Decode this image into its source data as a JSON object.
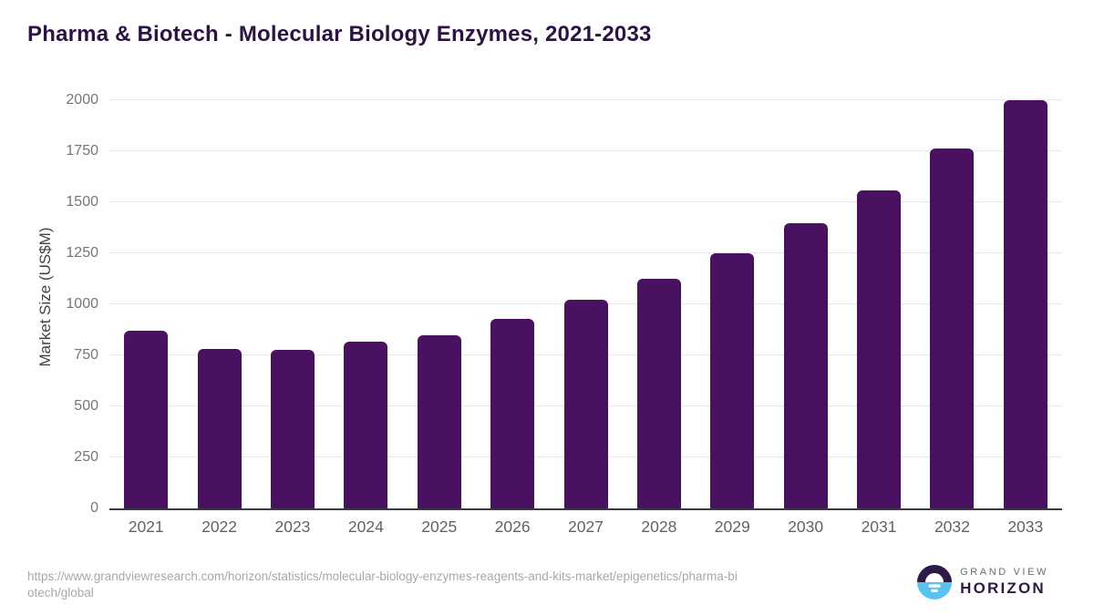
{
  "header": {
    "title": "Pharma & Biotech - Molecular Biology Enzymes, 2021-2033"
  },
  "chart_data": {
    "type": "bar",
    "title": "Pharma & Biotech - Molecular Biology Enzymes, 2021-2033",
    "categories": [
      "2021",
      "2022",
      "2023",
      "2024",
      "2025",
      "2026",
      "2027",
      "2028",
      "2029",
      "2030",
      "2031",
      "2032",
      "2033"
    ],
    "values": [
      869,
      781,
      777,
      818,
      850,
      930,
      1022,
      1127,
      1250,
      1396,
      1560,
      1762,
      1998
    ],
    "xlabel": "",
    "ylabel": "Market Size (US$M)",
    "ylim": [
      0,
      2000
    ],
    "yticks": [
      0,
      250,
      500,
      750,
      1000,
      1250,
      1500,
      1750,
      2000
    ],
    "grid": true,
    "legend": false,
    "bar_color": "#4a1161"
  },
  "footer": {
    "source_url_line1": "https://www.grandviewresearch.com/horizon/statistics/molecular-biology-enzymes-reagents-and-kits-market/epigenetics/pharma-bi",
    "source_url_line2": "otech/global",
    "logo": {
      "brand_top": "GRAND VIEW",
      "brand_bottom": "HORIZON"
    }
  },
  "colors": {
    "bar": "#4a1161",
    "title": "#2d1245",
    "grid": "#e7e7e7",
    "axis_line": "#3a3a42",
    "y_tick": "#757575",
    "x_tick": "#5f6368",
    "axis_title": "#424242",
    "url_text": "#a8a8a8",
    "logo_purple": "#2e1a47",
    "logo_blue": "#59c3f0",
    "logo_gray": "#6b6b74"
  }
}
